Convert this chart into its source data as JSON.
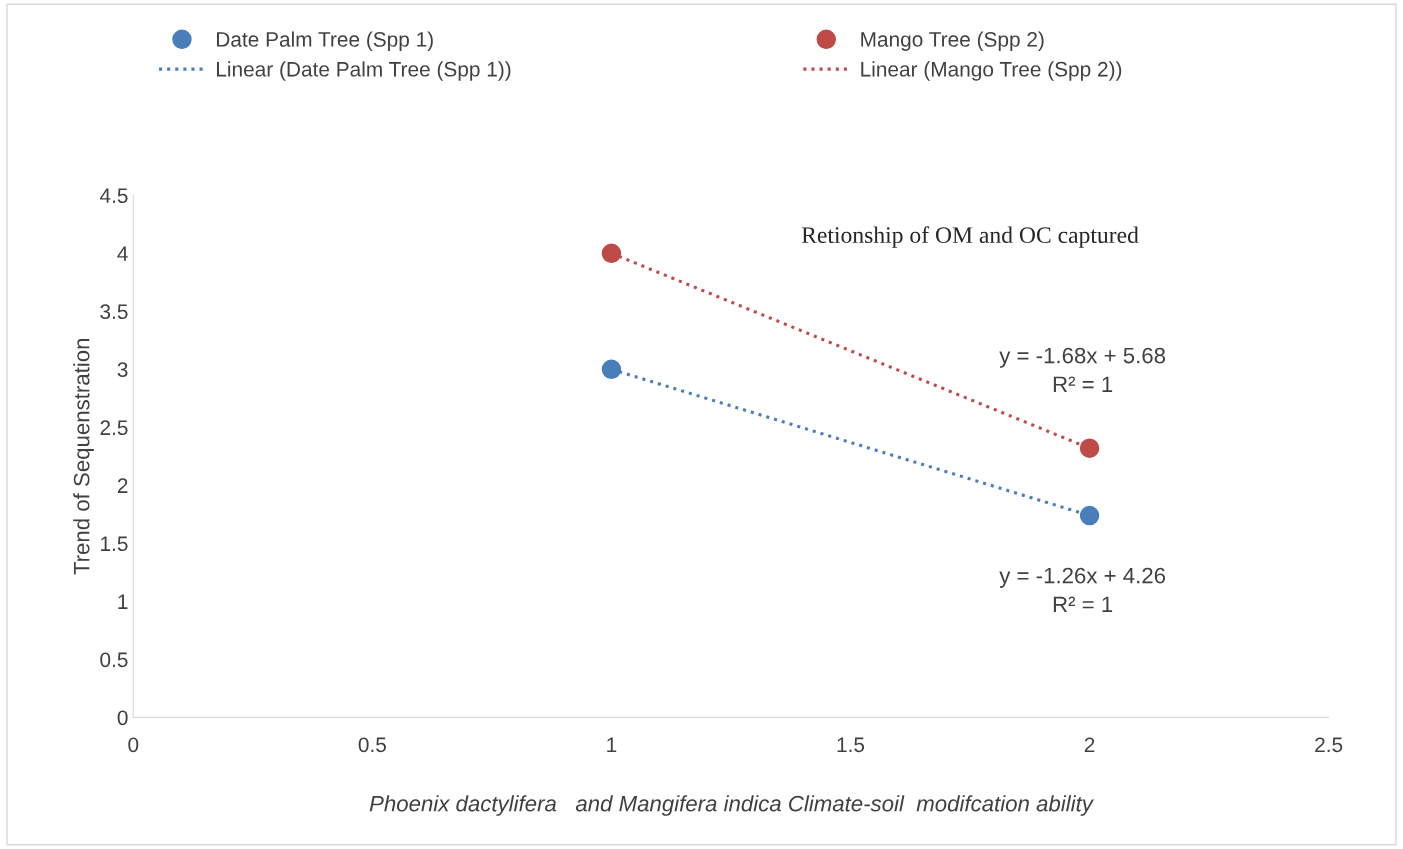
{
  "chart_data": {
    "type": "scatter",
    "xlabel": "Phoenix dactylifera   and Mangifera indica Climate-soil  modifcation ability",
    "ylabel": "Trend of Sequenstration",
    "xlim": [
      0,
      2.5
    ],
    "xticks": [
      0,
      0.5,
      1,
      1.5,
      2,
      2.5
    ],
    "ylim": [
      0,
      4.5
    ],
    "yticks": [
      0,
      0.5,
      1,
      1.5,
      2,
      2.5,
      3,
      3.5,
      4,
      4.5
    ],
    "grid": false,
    "legend": "top",
    "x": [
      1,
      2
    ],
    "series": [
      {
        "name": "Date Palm Tree (Spp 1)",
        "marker": "circle",
        "color": "#4a7ebb",
        "values": [
          3,
          1.74
        ]
      },
      {
        "name": "Linear (Date Palm Tree (Spp 1))",
        "type": "line",
        "line_style": "dotted",
        "marker": "none",
        "color": "#4a7ebb",
        "values": [
          3,
          1.74
        ]
      },
      {
        "name": "Mango Tree (Spp 2)",
        "marker": "circle",
        "color": "#be4b48",
        "values": [
          4,
          2.32
        ]
      },
      {
        "name": "Linear (Mango Tree (Spp 2))",
        "type": "line",
        "line_style": "dotted",
        "marker": "none",
        "color": "#be4b48",
        "values": [
          4,
          2.32
        ]
      }
    ],
    "annotations": [
      "Retionship of OM and OC captured",
      {
        "text": "y = -1.68x + 5.68\nR² = 1",
        "x": 2,
        "y": 2.32
      },
      {
        "text": "y = -1.26x + 4.26\nR² = 1",
        "x": 2,
        "y": 1.74
      }
    ]
  }
}
